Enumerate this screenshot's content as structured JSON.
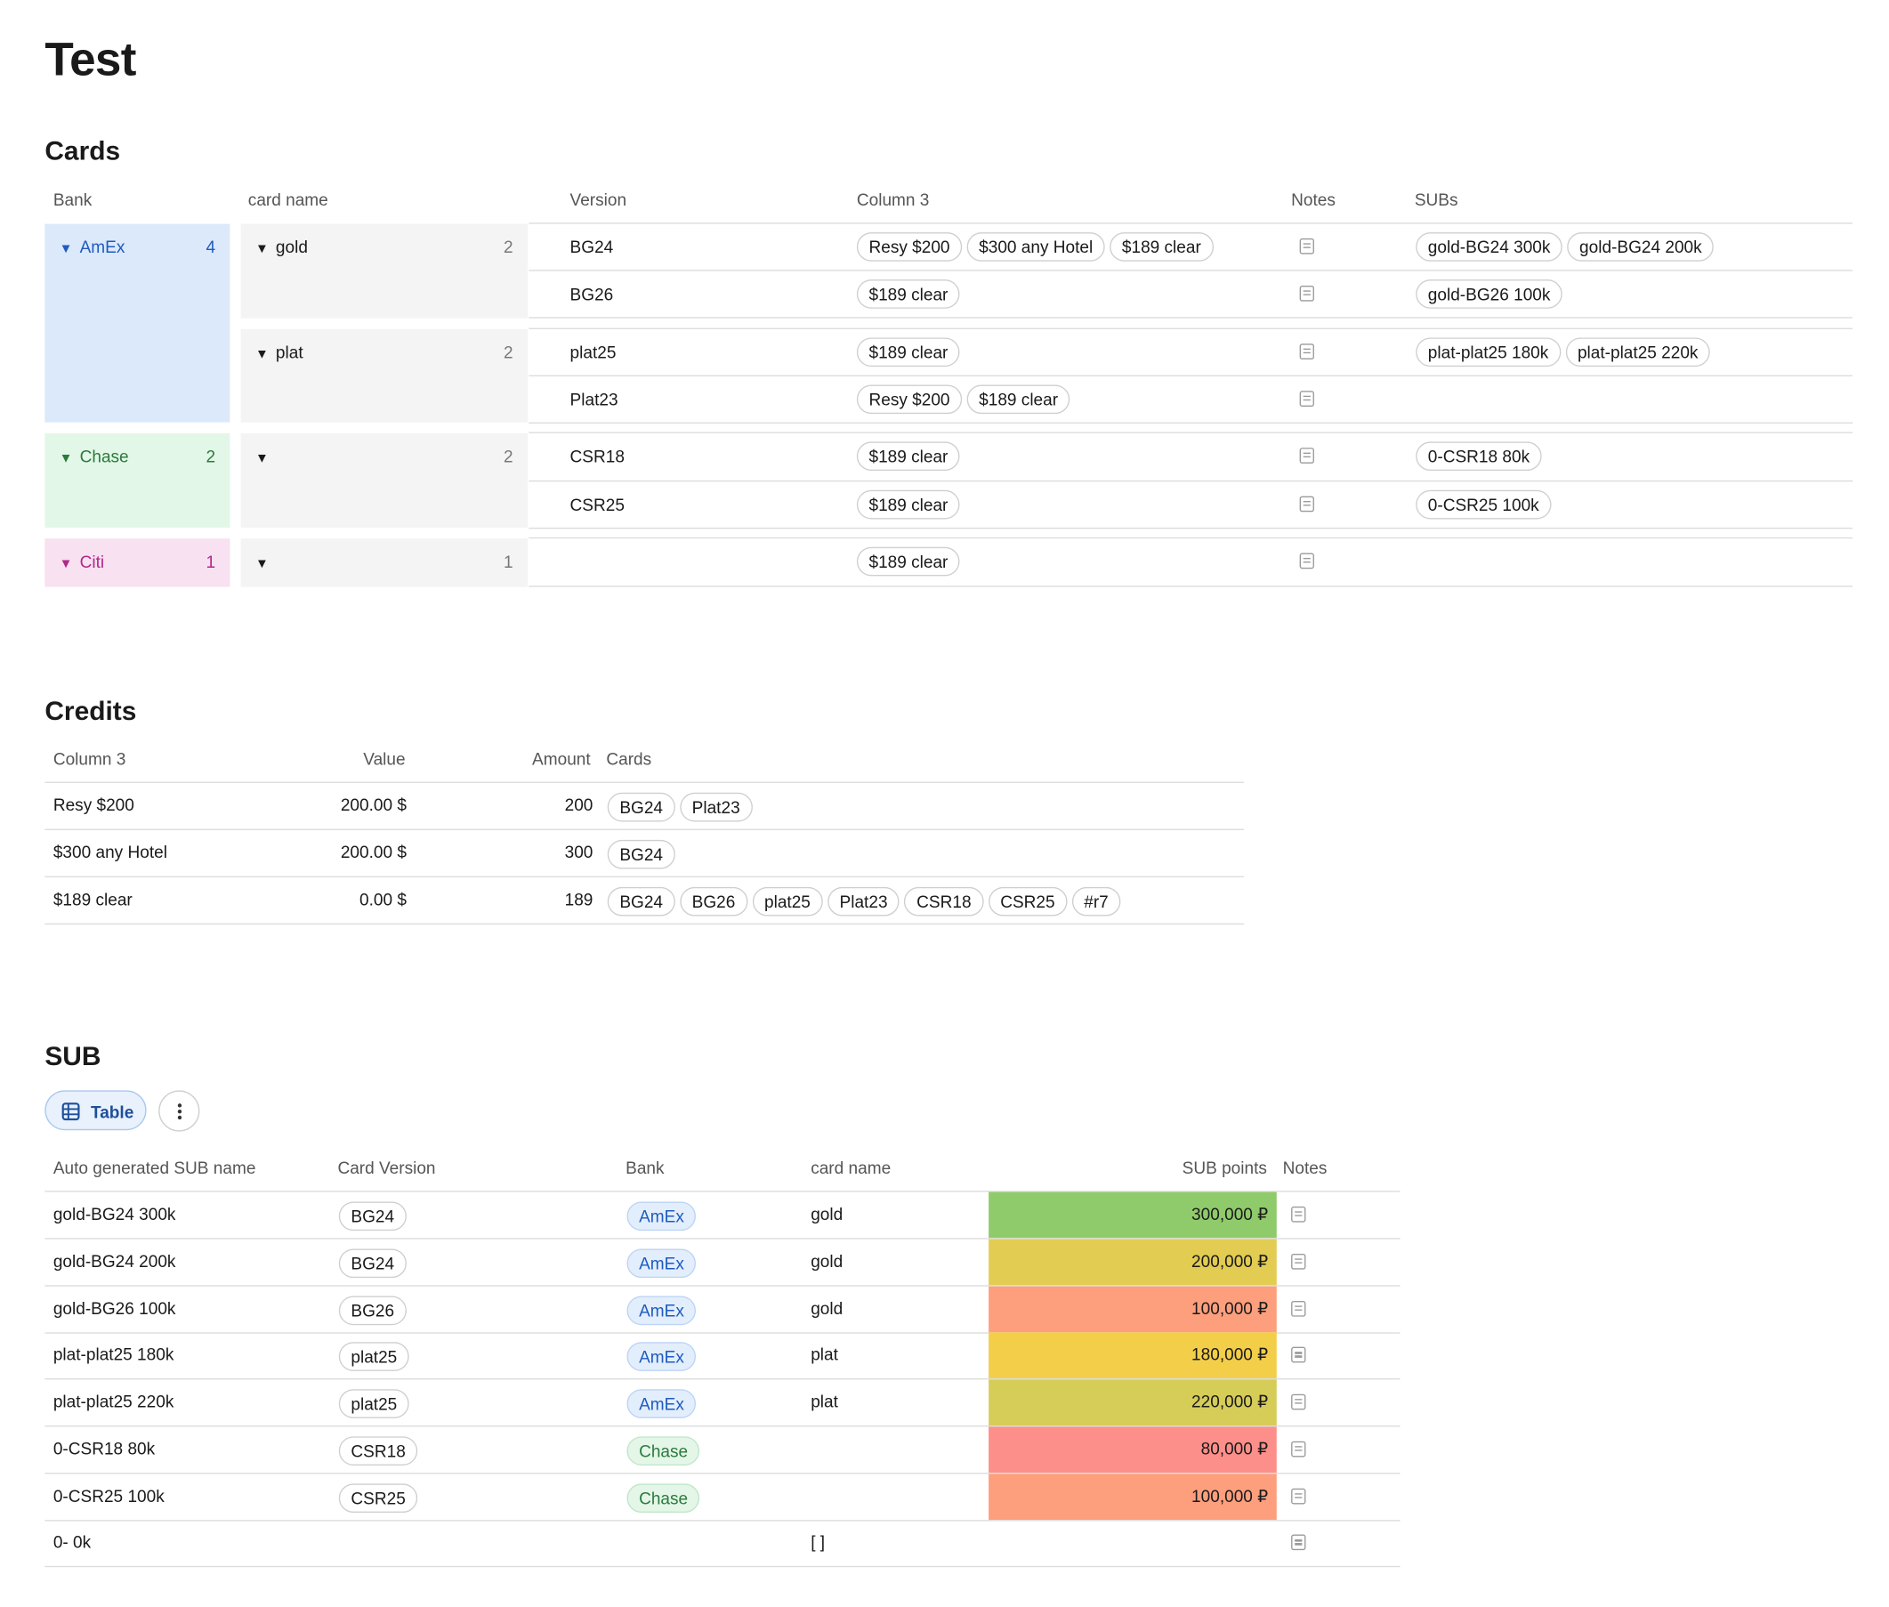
{
  "page": {
    "title": "Test"
  },
  "cards": {
    "heading": "Cards",
    "columns": [
      "Bank",
      "card name",
      "Version",
      "Column 3",
      "Notes",
      "SUBs"
    ],
    "banks": [
      {
        "name": "AmEx",
        "count": "4",
        "color": "#dce9fb",
        "text_color": "#1d5bbf"
      },
      {
        "name": "Chase",
        "count": "2",
        "color": "#e2f7e7",
        "text_color": "#2c7a3d"
      },
      {
        "name": "Citi",
        "count": "1",
        "color": "#f8e1f0",
        "text_color": "#b0288a"
      }
    ],
    "groups": [
      {
        "name": "gold",
        "count": "2"
      },
      {
        "name": "plat",
        "count": "2"
      },
      {
        "name": "",
        "count": "2"
      },
      {
        "name": "",
        "count": "1"
      }
    ],
    "rows": [
      {
        "version": "BG24",
        "credits": [
          "Resy $200",
          "$300 any Hotel",
          "$189 clear"
        ],
        "subs": [
          "gold-BG24 300k",
          "gold-BG24 200k"
        ]
      },
      {
        "version": "BG26",
        "credits": [
          "$189 clear"
        ],
        "subs": [
          "gold-BG26 100k"
        ]
      },
      {
        "version": "plat25",
        "credits": [
          "$189 clear"
        ],
        "subs": [
          "plat-plat25 180k",
          "plat-plat25 220k"
        ]
      },
      {
        "version": "Plat23",
        "credits": [
          "Resy $200",
          "$189 clear"
        ],
        "subs": []
      },
      {
        "version": "CSR18",
        "credits": [
          "$189 clear"
        ],
        "subs": [
          "0-CSR18 80k"
        ]
      },
      {
        "version": "CSR25",
        "credits": [
          "$189 clear"
        ],
        "subs": [
          "0-CSR25 100k"
        ]
      },
      {
        "version": "",
        "credits": [
          "$189 clear"
        ],
        "subs": []
      }
    ]
  },
  "credits": {
    "heading": "Credits",
    "columns": [
      "Column 3",
      "Value",
      "Amount",
      "Cards"
    ],
    "rows": [
      {
        "name": "Resy $200",
        "value": "200.00 $",
        "amount": "200",
        "cards": [
          "BG24",
          "Plat23"
        ]
      },
      {
        "name": "$300 any Hotel",
        "value": "200.00 $",
        "amount": "300",
        "cards": [
          "BG24"
        ]
      },
      {
        "name": "$189 clear",
        "value": "0.00 $",
        "amount": "189",
        "cards": [
          "BG24",
          "BG26",
          "plat25",
          "Plat23",
          "CSR18",
          "CSR25",
          "#r7"
        ]
      }
    ]
  },
  "sub": {
    "heading": "SUB",
    "view_button": "Table",
    "columns": [
      "Auto generated SUB name",
      "Card Version",
      "Bank",
      "card name",
      "SUB points",
      "Notes"
    ],
    "rows": [
      {
        "name": "gold-BG24 300k",
        "version": "BG24",
        "bank": "AmEx",
        "card": "gold",
        "points": "300,000 ₽",
        "color": "#8fcb6b"
      },
      {
        "name": "gold-BG24 200k",
        "version": "BG24",
        "bank": "AmEx",
        "card": "gold",
        "points": "200,000 ₽",
        "color": "#e2cc52"
      },
      {
        "name": "gold-BG26 100k",
        "version": "BG26",
        "bank": "AmEx",
        "card": "gold",
        "points": "100,000 ₽",
        "color": "#fd9f7d"
      },
      {
        "name": "plat-plat25 180k",
        "version": "plat25",
        "bank": "AmEx",
        "card": "plat",
        "points": "180,000 ₽",
        "color": "#f3ce48"
      },
      {
        "name": "plat-plat25 220k",
        "version": "plat25",
        "bank": "AmEx",
        "card": "plat",
        "points": "220,000 ₽",
        "color": "#d6cc58"
      },
      {
        "name": "0-CSR18 80k",
        "version": "CSR18",
        "bank": "Chase",
        "card": "",
        "points": "80,000 ₽",
        "color": "#fd8f8a"
      },
      {
        "name": "0-CSR25 100k",
        "version": "CSR25",
        "bank": "Chase",
        "card": "",
        "points": "100,000 ₽",
        "color": "#fd9f7d"
      },
      {
        "name": "0- 0k",
        "version": "",
        "bank": "",
        "card": "[ ]",
        "points": "",
        "color": ""
      }
    ]
  }
}
